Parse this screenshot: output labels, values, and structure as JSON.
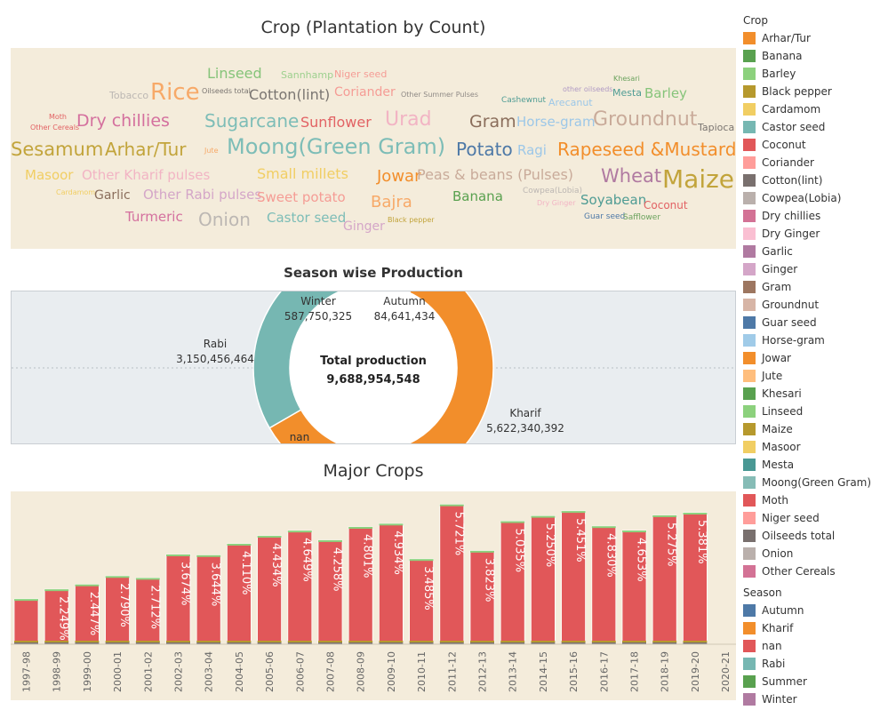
{
  "wordcloud": {
    "title": "Crop (Plantation by Count)",
    "words": [
      {
        "text": "Linseed",
        "color": "#86c47a"
      },
      {
        "text": "Sannhamp",
        "color": "#9ed08f"
      },
      {
        "text": "Niger seed",
        "color": "#f59c95"
      },
      {
        "text": "Khesari",
        "color": "#6aa25d"
      },
      {
        "text": "Tobacco",
        "color": "#bcb7b3"
      },
      {
        "text": "Rice",
        "color": "#f7a968"
      },
      {
        "text": "Oilseeds total",
        "color": "#7a7571"
      },
      {
        "text": "Cotton(lint)",
        "color": "#7a7571"
      },
      {
        "text": "Coriander",
        "color": "#f59c95"
      },
      {
        "text": "Other Summer Pulses",
        "color": "#8f8a86"
      },
      {
        "text": "other oilseeds",
        "color": "#b09ac4"
      },
      {
        "text": "Mesta",
        "color": "#4f9c94"
      },
      {
        "text": "Barley",
        "color": "#86c47a"
      },
      {
        "text": "Cashewnut",
        "color": "#4f9c94"
      },
      {
        "text": "Arecanut",
        "color": "#9cc7e8"
      },
      {
        "text": "Moth",
        "color": "#e26264"
      },
      {
        "text": "Other Cereals",
        "color": "#e26264"
      },
      {
        "text": "Dry chillies",
        "color": "#d4709e"
      },
      {
        "text": "Sugarcane",
        "color": "#7dbdb7"
      },
      {
        "text": "Sunflower",
        "color": "#e26264"
      },
      {
        "text": "Urad",
        "color": "#f2b4c4"
      },
      {
        "text": "Gram",
        "color": "#8a6d5b"
      },
      {
        "text": "Horse-gram",
        "color": "#9cc7e8"
      },
      {
        "text": "Groundnut",
        "color": "#c9ab9a"
      },
      {
        "text": "Tapioca",
        "color": "#7a7571"
      },
      {
        "text": "Sesamum",
        "color": "#c2a43b"
      },
      {
        "text": "Arhar/Tur",
        "color": "#c2a43b"
      },
      {
        "text": "Jute",
        "color": "#f7a968"
      },
      {
        "text": "Moong(Green Gram)",
        "color": "#7dbdb7"
      },
      {
        "text": "Potato",
        "color": "#4e79a7"
      },
      {
        "text": "Ragi",
        "color": "#9cc7e8"
      },
      {
        "text": "Rapeseed &Mustard",
        "color": "#f28e2b"
      },
      {
        "text": "Masoor",
        "color": "#f1ce63"
      },
      {
        "text": "Other Kharif pulses",
        "color": "#f2b4c4"
      },
      {
        "text": "Small millets",
        "color": "#f1ce63"
      },
      {
        "text": "Jowar",
        "color": "#f28e2b"
      },
      {
        "text": "Peas & beans (Pulses)",
        "color": "#c9ab9a"
      },
      {
        "text": "Wheat",
        "color": "#b07aa1"
      },
      {
        "text": "Maize",
        "color": "#c2a43b"
      },
      {
        "text": "Cardamom",
        "color": "#f1ce63"
      },
      {
        "text": "Garlic",
        "color": "#8a6d5b"
      },
      {
        "text": "Other Rabi pulses",
        "color": "#d4a6c8"
      },
      {
        "text": "Sweet potato",
        "color": "#f59c95"
      },
      {
        "text": "Bajra",
        "color": "#f7a968"
      },
      {
        "text": "Banana",
        "color": "#59a14f"
      },
      {
        "text": "Cowpea(Lobia)",
        "color": "#bcb7b3"
      },
      {
        "text": "Dry Ginger",
        "color": "#f2b4c4"
      },
      {
        "text": "Soyabean",
        "color": "#4f9c94"
      },
      {
        "text": "Coconut",
        "color": "#e26264"
      },
      {
        "text": "Turmeric",
        "color": "#d4709e"
      },
      {
        "text": "Onion",
        "color": "#bcb7b3"
      },
      {
        "text": "Castor seed",
        "color": "#7dbdb7"
      },
      {
        "text": "Ginger",
        "color": "#d4a6c8"
      },
      {
        "text": "Black pepper",
        "color": "#c2a43b"
      },
      {
        "text": "Guar seed",
        "color": "#4e79a7"
      },
      {
        "text": "Safflower",
        "color": "#6aa25d"
      }
    ]
  },
  "donut": {
    "title": "Season wise Production",
    "center_label": "Total production",
    "center_value": "9,688,954,548",
    "slices": [
      {
        "name": "Winter",
        "value": 587750325,
        "value_label": "587,750,325",
        "color": "#b07aa1"
      },
      {
        "name": "Autumn",
        "value": 84641434,
        "value_label": "84,641,434",
        "color": "#4e79a7"
      },
      {
        "name": "Kharif",
        "value": 5622340392,
        "value_label": "5,622,340,392",
        "color": "#f28e2b"
      },
      {
        "name": "nan",
        "value": 0,
        "value_label": "",
        "color": "#e15759"
      },
      {
        "name": "Rabi",
        "value": 3150456464,
        "value_label": "3,150,456,464",
        "color": "#76b7b2"
      }
    ]
  },
  "chart_data": {
    "type": "bar",
    "title": "Major Crops",
    "categories": [
      "1997-98",
      "1998-99",
      "1999-00",
      "2000-01",
      "2001-02",
      "2002-03",
      "2003-04",
      "2004-05",
      "2005-06",
      "2006-07",
      "2007-08",
      "2008-09",
      "2009-10",
      "2010-11",
      "2011-12",
      "2012-13",
      "2013-14",
      "2014-15",
      "2015-16",
      "2016-17",
      "2017-18",
      "2018-19",
      "2019-20",
      "2020-21"
    ],
    "values": [
      1.85,
      2.249,
      2.447,
      2.79,
      2.712,
      3.674,
      3.644,
      4.11,
      4.434,
      4.649,
      4.258,
      4.801,
      4.934,
      3.485,
      5.721,
      3.823,
      5.035,
      5.25,
      5.451,
      4.83,
      4.653,
      5.275,
      5.381,
      0
    ],
    "labels": [
      "",
      "2.249%",
      "2.447%",
      "2.790%",
      "2.712%",
      "3.674%",
      "3.644%",
      "4.110%",
      "4.434%",
      "4.649%",
      "4.258%",
      "4.801%",
      "4.934%",
      "3.485%",
      "5.721%",
      "3.823%",
      "5.035%",
      "5.250%",
      "5.451%",
      "4.830%",
      "4.653%",
      "5.275%",
      "5.381%",
      ""
    ],
    "bar_color": "#e15759",
    "ylabel": "",
    "ylim": [
      0,
      6
    ]
  },
  "legend": {
    "crop_title": "Crop",
    "crops": [
      {
        "label": "Arhar/Tur",
        "color": "#f28e2b"
      },
      {
        "label": "Banana",
        "color": "#59a14f"
      },
      {
        "label": "Barley",
        "color": "#8cd17d"
      },
      {
        "label": "Black pepper",
        "color": "#b6992d"
      },
      {
        "label": "Cardamom",
        "color": "#f1ce63"
      },
      {
        "label": "Castor seed",
        "color": "#76b7b2"
      },
      {
        "label": "Coconut",
        "color": "#e15759"
      },
      {
        "label": "Coriander",
        "color": "#ff9d9a"
      },
      {
        "label": "Cotton(lint)",
        "color": "#79706e"
      },
      {
        "label": "Cowpea(Lobia)",
        "color": "#bab0ac"
      },
      {
        "label": "Dry chillies",
        "color": "#d37295"
      },
      {
        "label": "Dry Ginger",
        "color": "#fabfd2"
      },
      {
        "label": "Garlic",
        "color": "#b07aa1"
      },
      {
        "label": "Ginger",
        "color": "#d4a6c8"
      },
      {
        "label": "Gram",
        "color": "#9d7660"
      },
      {
        "label": "Groundnut",
        "color": "#d7b5a6"
      },
      {
        "label": "Guar seed",
        "color": "#4e79a7"
      },
      {
        "label": "Horse-gram",
        "color": "#a0cbe8"
      },
      {
        "label": "Jowar",
        "color": "#f28e2b"
      },
      {
        "label": "Jute",
        "color": "#ffbe7d"
      },
      {
        "label": "Khesari",
        "color": "#59a14f"
      },
      {
        "label": "Linseed",
        "color": "#8cd17d"
      },
      {
        "label": "Maize",
        "color": "#b6992d"
      },
      {
        "label": "Masoor",
        "color": "#f1ce63"
      },
      {
        "label": "Mesta",
        "color": "#499894"
      },
      {
        "label": "Moong(Green Gram)",
        "color": "#86bcb6"
      },
      {
        "label": "Moth",
        "color": "#e15759"
      },
      {
        "label": "Niger seed",
        "color": "#ff9d9a"
      },
      {
        "label": "Oilseeds total",
        "color": "#79706e"
      },
      {
        "label": "Onion",
        "color": "#bab0ac"
      },
      {
        "label": "Other Cereals",
        "color": "#d37295"
      }
    ],
    "season_title": "Season",
    "seasons": [
      {
        "label": "Autumn",
        "color": "#4e79a7"
      },
      {
        "label": "Kharif",
        "color": "#f28e2b"
      },
      {
        "label": "nan",
        "color": "#e15759"
      },
      {
        "label": "Rabi",
        "color": "#76b7b2"
      },
      {
        "label": "Summer",
        "color": "#59a14f"
      },
      {
        "label": "Winter",
        "color": "#b07aa1"
      }
    ]
  }
}
